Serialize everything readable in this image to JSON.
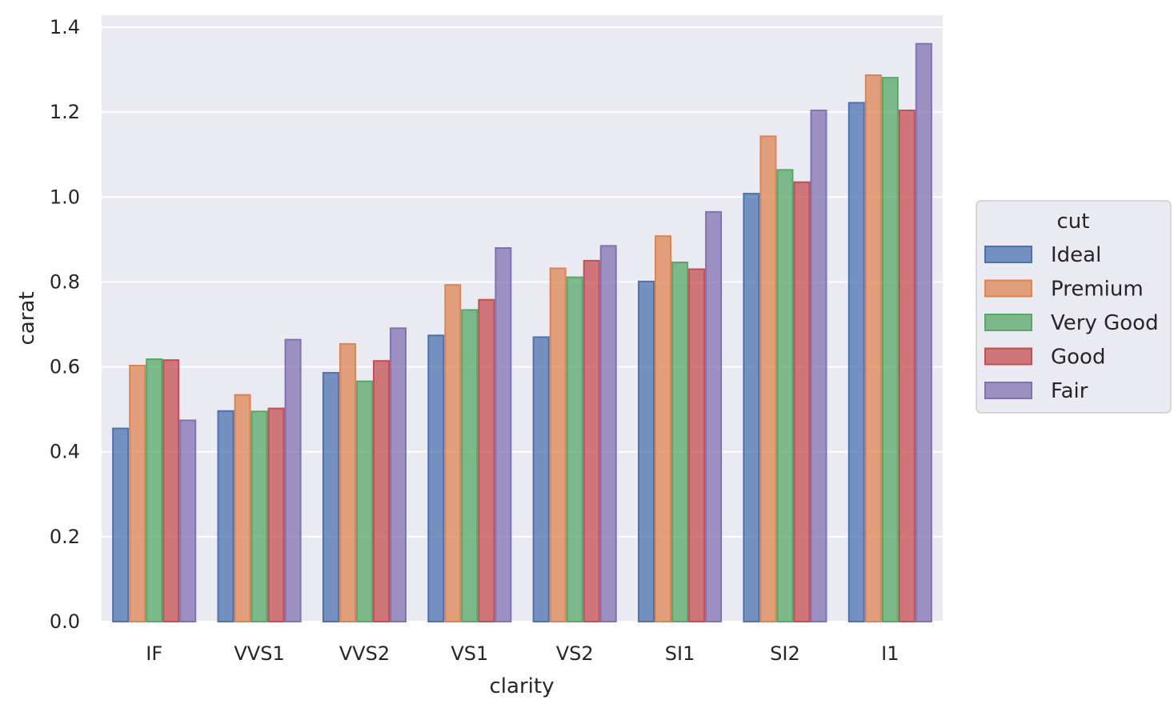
{
  "chart_data": {
    "type": "bar",
    "title": "",
    "xlabel": "clarity",
    "ylabel": "carat",
    "categories": [
      "IF",
      "VVS1",
      "VVS2",
      "VS1",
      "VS2",
      "SI1",
      "SI2",
      "I1"
    ],
    "ylim": [
      0,
      1.42
    ],
    "yticks": [
      "0.0",
      "0.2",
      "0.4",
      "0.6",
      "0.8",
      "1.0",
      "1.2",
      "1.4"
    ],
    "grid": true,
    "legend": {
      "title": "cut",
      "position": "right"
    },
    "series": [
      {
        "name": "Ideal",
        "color": "#4c72b0",
        "values": [
          0.455,
          0.496,
          0.586,
          0.674,
          0.67,
          0.801,
          1.008,
          1.222
        ]
      },
      {
        "name": "Premium",
        "color": "#dd8452",
        "values": [
          0.603,
          0.534,
          0.654,
          0.793,
          0.832,
          0.908,
          1.143,
          1.287
        ]
      },
      {
        "name": "Very Good",
        "color": "#55a868",
        "values": [
          0.618,
          0.495,
          0.566,
          0.734,
          0.811,
          0.846,
          1.064,
          1.281
        ]
      },
      {
        "name": "Good",
        "color": "#c44e52",
        "values": [
          0.616,
          0.502,
          0.614,
          0.758,
          0.85,
          0.83,
          1.035,
          1.204
        ]
      },
      {
        "name": "Fair",
        "color": "#8172b3",
        "values": [
          0.474,
          0.664,
          0.691,
          0.88,
          0.885,
          0.965,
          1.204,
          1.361
        ]
      }
    ]
  }
}
